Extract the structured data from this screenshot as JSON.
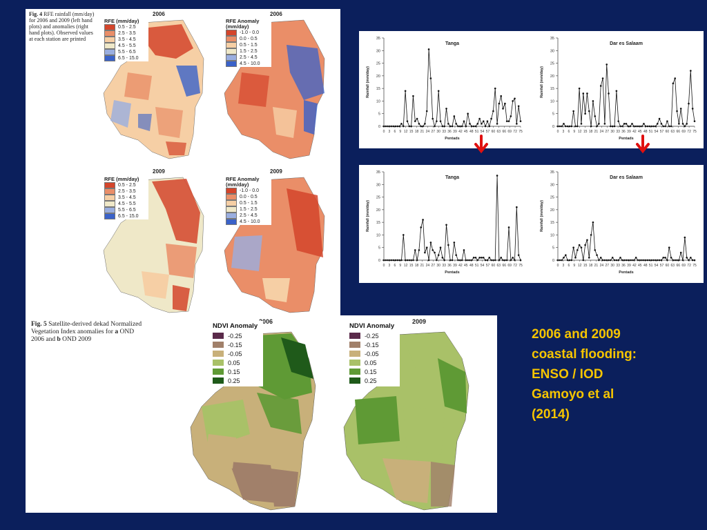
{
  "fig4": {
    "caption_label": "Fig. 4",
    "caption_text": "RFE rainfall (mm/day) for 2006 and 2009 (left hand plots) and anomalies (right hand plots). Observed values at each station are printed",
    "year_2006": "2006",
    "year_2009": "2009",
    "rfe_legend": {
      "title": "RFE (mm/day)",
      "items": [
        {
          "label": "0.5 - 2.5",
          "color": "#d4452b"
        },
        {
          "label": "2.5 - 3.5",
          "color": "#ea8e68"
        },
        {
          "label": "3.5 - 4.5",
          "color": "#f6cfa5"
        },
        {
          "label": "4.5 - 5.5",
          "color": "#efe8c8"
        },
        {
          "label": "5.5 - 6.5",
          "color": "#9aaee0"
        },
        {
          "label": "6.5 - 15.0",
          "color": "#3a62c9"
        }
      ]
    },
    "anom_legend": {
      "title": "RFE Anomaly (mm/day)",
      "items": [
        {
          "label": "-1.0 - 0.0",
          "color": "#d4452b"
        },
        {
          "label": "0.0 - 0.5",
          "color": "#ea8e68"
        },
        {
          "label": "0.5 - 1.5",
          "color": "#f6cfa5"
        },
        {
          "label": "1.5 - 2.5",
          "color": "#efe8c8"
        },
        {
          "label": "2.5 - 4.5",
          "color": "#9aaee0"
        },
        {
          "label": "4.5 - 10.0",
          "color": "#3a62c9"
        }
      ]
    }
  },
  "fig5": {
    "caption_label": "Fig. 5",
    "caption_text_1": "Satellite-derived dekad Normalized Vegetation Index anomalies for",
    "caption_a": "a",
    "caption_text_2": "OND 2006 and",
    "caption_b": "b",
    "caption_text_3": "OND 2009",
    "year_2006": "2006",
    "year_2009": "2009",
    "legend": {
      "title": "NDVI Anomaly",
      "items": [
        {
          "label": "-0.25",
          "color": "#5a2a4a"
        },
        {
          "label": "-0.15",
          "color": "#a1806a"
        },
        {
          "label": "-0.05",
          "color": "#c8b07a"
        },
        {
          "label": "0.05",
          "color": "#a9c168"
        },
        {
          "label": "0.15",
          "color": "#5f9a35"
        },
        {
          "label": "0.25",
          "color": "#1f5a1a"
        }
      ]
    }
  },
  "side_text": {
    "line1": "2006 and 2009",
    "line2": "coastal flooding:",
    "line3": "ENSO / IOD",
    "line4": "Gamoyo et al",
    "line5": "(2014)"
  },
  "chart_data": [
    {
      "type": "line",
      "title": "Tanga",
      "xlabel": "Pentads",
      "ylabel": "Rainfall (mm/day)",
      "ylim": [
        0,
        35
      ],
      "yticks": [
        "0",
        "5",
        "10",
        "15",
        "20",
        "25",
        "30",
        "35"
      ],
      "xticks": [
        "0",
        "3",
        "6",
        "9",
        "12",
        "15",
        "18",
        "21",
        "24",
        "27",
        "30",
        "33",
        "36",
        "39",
        "42",
        "45",
        "48",
        "51",
        "54",
        "57",
        "60",
        "63",
        "66",
        "69",
        "72",
        "75"
      ],
      "series": [
        {
          "values": [
            0,
            0,
            0,
            0,
            0,
            0,
            0,
            0,
            0,
            1,
            0,
            14,
            2,
            0,
            0,
            12,
            2,
            3,
            1,
            0,
            0,
            1,
            6,
            30.5,
            19,
            3,
            0,
            2,
            14,
            2,
            0,
            0,
            7,
            1,
            0,
            0,
            4,
            1,
            0,
            0,
            0,
            2,
            0,
            5,
            1,
            0,
            0,
            0,
            1,
            3,
            1,
            2,
            0,
            2,
            0,
            3,
            6,
            15,
            1,
            9,
            12,
            7,
            9,
            2,
            2,
            4,
            10,
            11,
            1,
            8,
            2
          ]
        }
      ]
    },
    {
      "type": "line",
      "title": "Dar es Salaam",
      "xlabel": "Pentads",
      "ylabel": "Rainfall (mm/day)",
      "ylim": [
        0,
        35
      ],
      "yticks": [
        "0",
        "5",
        "10",
        "15",
        "20",
        "25",
        "30",
        "35"
      ],
      "xticks": [
        "0",
        "3",
        "6",
        "9",
        "12",
        "15",
        "18",
        "21",
        "24",
        "27",
        "30",
        "33",
        "36",
        "39",
        "42",
        "45",
        "48",
        "51",
        "54",
        "57",
        "60",
        "63",
        "66",
        "69",
        "72",
        "75"
      ],
      "series": [
        {
          "values": [
            0,
            0,
            0,
            1,
            0,
            0,
            0,
            0,
            6,
            0,
            0,
            15,
            1,
            13,
            5,
            13,
            6,
            0,
            10,
            4,
            0,
            1,
            16,
            19,
            1,
            24.5,
            13,
            0,
            0,
            0,
            14,
            2,
            0,
            0,
            1,
            1,
            0,
            0,
            1,
            0,
            0,
            0,
            0,
            0,
            1,
            0,
            0,
            0,
            0,
            0,
            0,
            1,
            3,
            1,
            0,
            0,
            2,
            0,
            0,
            17,
            19,
            6,
            1,
            7,
            1,
            0,
            1,
            9,
            22,
            7,
            2
          ]
        }
      ]
    },
    {
      "type": "line",
      "title": "Tanga",
      "xlabel": "Pentads",
      "ylabel": "Rainfall (mm/day)",
      "ylim": [
        0,
        35
      ],
      "yticks": [
        "0",
        "5",
        "10",
        "15",
        "20",
        "25",
        "30",
        "35"
      ],
      "xticks": [
        "0",
        "3",
        "6",
        "9",
        "12",
        "15",
        "18",
        "21",
        "24",
        "27",
        "30",
        "33",
        "36",
        "39",
        "42",
        "45",
        "48",
        "51",
        "54",
        "57",
        "60",
        "63",
        "66",
        "69",
        "72",
        "75"
      ],
      "series": [
        {
          "values": [
            0,
            0,
            0,
            0,
            0,
            0,
            0,
            0,
            0,
            0,
            10,
            0,
            0,
            0,
            0,
            0,
            4,
            0,
            4,
            13,
            16,
            3,
            5,
            0,
            7,
            4,
            3,
            0,
            2,
            5,
            1,
            0,
            14,
            6,
            0,
            0,
            7,
            2,
            0,
            0,
            0,
            4,
            0,
            0,
            0,
            0,
            1,
            1,
            0,
            1,
            1,
            1,
            0,
            0,
            1,
            0,
            0,
            0,
            33.5,
            0,
            1,
            0,
            0,
            0,
            13,
            0,
            1,
            0,
            21,
            2,
            0
          ]
        }
      ]
    },
    {
      "type": "line",
      "title": "Dar es Salaam",
      "xlabel": "Pentads",
      "ylabel": "Rainfall (mm/day)",
      "ylim": [
        0,
        35
      ],
      "yticks": [
        "0",
        "5",
        "10",
        "15",
        "20",
        "25",
        "30",
        "35"
      ],
      "xticks": [
        "0",
        "3",
        "6",
        "9",
        "12",
        "15",
        "18",
        "21",
        "24",
        "27",
        "30",
        "33",
        "36",
        "39",
        "42",
        "45",
        "48",
        "51",
        "54",
        "57",
        "60",
        "63",
        "66",
        "69",
        "72",
        "75"
      ],
      "series": [
        {
          "values": [
            0,
            0,
            0,
            1,
            2,
            0,
            0,
            0,
            5,
            1,
            4,
            6,
            5,
            0,
            6,
            8,
            1,
            10,
            15,
            4,
            2,
            0,
            1,
            0,
            0,
            0,
            0,
            0,
            1,
            0,
            0,
            0,
            1,
            0,
            0,
            0,
            0,
            0,
            0,
            0,
            1,
            0,
            0,
            0,
            0,
            0,
            0,
            0,
            0,
            0,
            0,
            0,
            0,
            0,
            1,
            1,
            0,
            5,
            1,
            0,
            0,
            0,
            0,
            3,
            0,
            9,
            1,
            0,
            1,
            0,
            0
          ]
        }
      ]
    }
  ]
}
